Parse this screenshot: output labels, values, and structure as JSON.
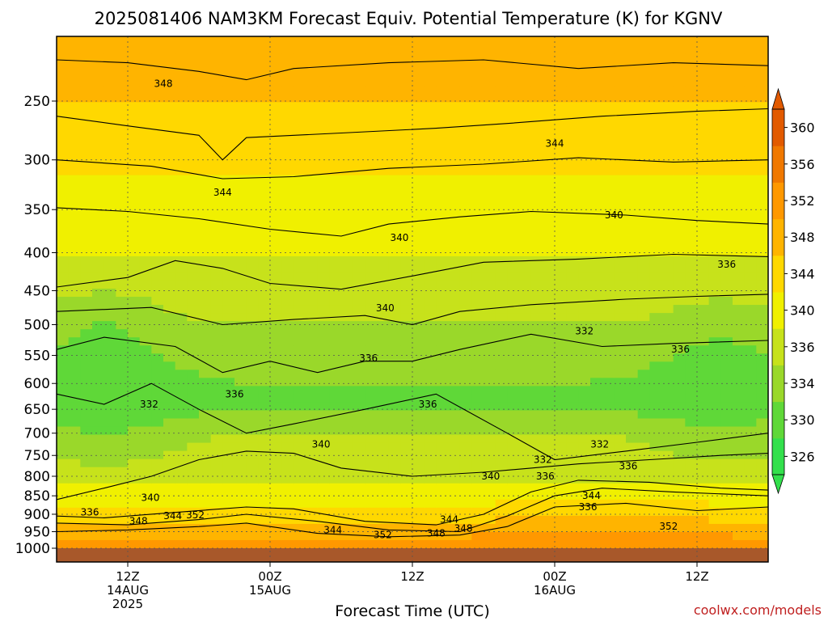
{
  "chart_data": {
    "type": "heatmap",
    "title": "2025081406 NAM3KM Forecast Equiv. Potential Temperature (K) for KGNV",
    "xlabel": "Forecast Time (UTC)",
    "ylabel": "",
    "credit": "coolwx.com/models",
    "x_axis": {
      "unit": "forecast hour",
      "range": [
        0,
        60
      ],
      "ticks": [
        {
          "hour": 6,
          "line1": "12Z",
          "line2": "14AUG",
          "line3": "2025"
        },
        {
          "hour": 18,
          "line1": "00Z",
          "line2": "15AUG",
          "line3": ""
        },
        {
          "hour": 30,
          "line1": "12Z",
          "line2": "",
          "line3": ""
        },
        {
          "hour": 42,
          "line1": "00Z",
          "line2": "16AUG",
          "line3": ""
        },
        {
          "hour": 54,
          "line1": "12Z",
          "line2": "",
          "line3": ""
        }
      ]
    },
    "y_axis": {
      "unit": "hPa",
      "scale": "log",
      "range": [
        1000,
        200
      ],
      "ticks": [
        250,
        300,
        350,
        400,
        450,
        500,
        550,
        600,
        650,
        700,
        750,
        800,
        850,
        900,
        950,
        1000
      ]
    },
    "colorbar": {
      "unit": "K",
      "levels": [
        326,
        330,
        334,
        336,
        340,
        344,
        348,
        352,
        356,
        360
      ],
      "colors": [
        "#33e04c",
        "#5fd838",
        "#9ad82a",
        "#c7e21b",
        "#f0f000",
        "#ffd800",
        "#ffb400",
        "#ff9800",
        "#f07800",
        "#e25a00"
      ]
    },
    "ground_color": "#a8582a",
    "contours": [
      {
        "value": 348,
        "points": [
          [
            0,
            220
          ],
          [
            6,
            222
          ],
          [
            12,
            228
          ],
          [
            16,
            234
          ],
          [
            20,
            226
          ],
          [
            28,
            222
          ],
          [
            36,
            220
          ],
          [
            44,
            226
          ],
          [
            52,
            222
          ],
          [
            60,
            224
          ]
        ]
      },
      {
        "value": 348,
        "points": [
          [
            0,
            262
          ],
          [
            6,
            270
          ],
          [
            12,
            278
          ],
          [
            14,
            300
          ],
          [
            16,
            280
          ],
          [
            24,
            276
          ],
          [
            32,
            272
          ],
          [
            38,
            268
          ],
          [
            46,
            262
          ],
          [
            54,
            258
          ],
          [
            60,
            256
          ]
        ]
      },
      {
        "value": 344,
        "points": [
          [
            0,
            300
          ],
          [
            8,
            306
          ],
          [
            14,
            318
          ],
          [
            20,
            316
          ],
          [
            28,
            308
          ],
          [
            36,
            304
          ],
          [
            44,
            298
          ],
          [
            52,
            302
          ],
          [
            60,
            300
          ]
        ]
      },
      {
        "value": 340,
        "points": [
          [
            0,
            348
          ],
          [
            6,
            352
          ],
          [
            12,
            360
          ],
          [
            18,
            372
          ],
          [
            24,
            380
          ],
          [
            28,
            366
          ],
          [
            34,
            358
          ],
          [
            40,
            352
          ],
          [
            48,
            356
          ],
          [
            54,
            362
          ],
          [
            60,
            366
          ]
        ]
      },
      {
        "value": 336,
        "points": [
          [
            0,
            445
          ],
          [
            6,
            432
          ],
          [
            10,
            410
          ],
          [
            14,
            420
          ],
          [
            18,
            440
          ],
          [
            24,
            448
          ],
          [
            30,
            430
          ],
          [
            36,
            412
          ],
          [
            44,
            408
          ],
          [
            52,
            402
          ],
          [
            60,
            405
          ]
        ]
      },
      {
        "value": 340,
        "points": [
          [
            0,
            480
          ],
          [
            8,
            474
          ],
          [
            14,
            500
          ],
          [
            20,
            492
          ],
          [
            26,
            486
          ],
          [
            30,
            500
          ],
          [
            34,
            480
          ],
          [
            40,
            470
          ],
          [
            48,
            462
          ],
          [
            54,
            458
          ],
          [
            60,
            455
          ]
        ]
      },
      {
        "value": 336,
        "points": [
          [
            0,
            540
          ],
          [
            4,
            520
          ],
          [
            10,
            535
          ],
          [
            14,
            580
          ],
          [
            18,
            560
          ],
          [
            22,
            580
          ],
          [
            26,
            560
          ],
          [
            30,
            560
          ],
          [
            34,
            540
          ],
          [
            40,
            515
          ],
          [
            46,
            535
          ],
          [
            52,
            530
          ],
          [
            60,
            525
          ]
        ]
      },
      {
        "value": 332,
        "points": [
          [
            0,
            620
          ],
          [
            4,
            640
          ],
          [
            8,
            600
          ],
          [
            12,
            650
          ],
          [
            16,
            700
          ],
          [
            20,
            680
          ],
          [
            26,
            650
          ],
          [
            32,
            620
          ],
          [
            38,
            700
          ],
          [
            42,
            760
          ],
          [
            48,
            740
          ],
          [
            54,
            720
          ],
          [
            60,
            700
          ]
        ]
      },
      {
        "value": 340,
        "points": [
          [
            0,
            860
          ],
          [
            4,
            830
          ],
          [
            8,
            800
          ],
          [
            12,
            760
          ],
          [
            16,
            740
          ],
          [
            20,
            745
          ],
          [
            24,
            780
          ],
          [
            30,
            800
          ],
          [
            36,
            790
          ],
          [
            40,
            780
          ],
          [
            44,
            770
          ],
          [
            50,
            760
          ],
          [
            56,
            750
          ],
          [
            60,
            745
          ]
        ]
      },
      {
        "value": 344,
        "points": [
          [
            0,
            905
          ],
          [
            4,
            910
          ],
          [
            10,
            895
          ],
          [
            16,
            880
          ],
          [
            20,
            885
          ],
          [
            26,
            920
          ],
          [
            32,
            930
          ],
          [
            36,
            900
          ],
          [
            40,
            840
          ],
          [
            44,
            810
          ],
          [
            50,
            815
          ],
          [
            56,
            830
          ],
          [
            60,
            835
          ]
        ]
      },
      {
        "value": 348,
        "points": [
          [
            0,
            925
          ],
          [
            6,
            930
          ],
          [
            12,
            915
          ],
          [
            16,
            900
          ],
          [
            22,
            920
          ],
          [
            28,
            945
          ],
          [
            34,
            950
          ],
          [
            38,
            905
          ],
          [
            42,
            850
          ],
          [
            46,
            830
          ],
          [
            52,
            840
          ],
          [
            60,
            850
          ]
        ]
      },
      {
        "value": 352,
        "points": [
          [
            0,
            950
          ],
          [
            6,
            945
          ],
          [
            12,
            935
          ],
          [
            16,
            925
          ],
          [
            22,
            955
          ],
          [
            28,
            965
          ],
          [
            34,
            960
          ],
          [
            38,
            935
          ],
          [
            42,
            880
          ],
          [
            48,
            870
          ],
          [
            54,
            890
          ],
          [
            60,
            880
          ]
        ]
      }
    ],
    "contour_labels": [
      {
        "text": "348",
        "hour": 9.0,
        "p": 237
      },
      {
        "text": "344",
        "hour": 14.0,
        "p": 332
      },
      {
        "text": "344",
        "hour": 42.0,
        "p": 285
      },
      {
        "text": "340",
        "hour": 28.9,
        "p": 382
      },
      {
        "text": "340",
        "hour": 47.0,
        "p": 356
      },
      {
        "text": "336",
        "hour": 56.5,
        "p": 415
      },
      {
        "text": "340",
        "hour": 27.7,
        "p": 475
      },
      {
        "text": "332",
        "hour": 44.5,
        "p": 510
      },
      {
        "text": "336",
        "hour": 52.6,
        "p": 540
      },
      {
        "text": "336",
        "hour": 26.3,
        "p": 555
      },
      {
        "text": "336",
        "hour": 15.0,
        "p": 620
      },
      {
        "text": "336",
        "hour": 31.3,
        "p": 640
      },
      {
        "text": "332",
        "hour": 7.8,
        "p": 640
      },
      {
        "text": "340",
        "hour": 22.3,
        "p": 725
      },
      {
        "text": "332",
        "hour": 41.0,
        "p": 760
      },
      {
        "text": "332",
        "hour": 45.8,
        "p": 725
      },
      {
        "text": "336",
        "hour": 48.2,
        "p": 775
      },
      {
        "text": "340",
        "hour": 36.6,
        "p": 800
      },
      {
        "text": "336",
        "hour": 41.2,
        "p": 800
      },
      {
        "text": "340",
        "hour": 7.9,
        "p": 855
      },
      {
        "text": "344",
        "hour": 45.1,
        "p": 850
      },
      {
        "text": "336",
        "hour": 2.8,
        "p": 895
      },
      {
        "text": "336",
        "hour": 44.8,
        "p": 880
      },
      {
        "text": "344",
        "hour": 9.8,
        "p": 905
      },
      {
        "text": "352",
        "hour": 11.7,
        "p": 902
      },
      {
        "text": "348",
        "hour": 6.9,
        "p": 920
      },
      {
        "text": "344",
        "hour": 33.1,
        "p": 915
      },
      {
        "text": "344",
        "hour": 23.3,
        "p": 945
      },
      {
        "text": "352",
        "hour": 27.5,
        "p": 960
      },
      {
        "text": "348",
        "hour": 32.0,
        "p": 955
      },
      {
        "text": "348",
        "hour": 34.3,
        "p": 940
      },
      {
        "text": "352",
        "hour": 51.6,
        "p": 935
      }
    ]
  }
}
